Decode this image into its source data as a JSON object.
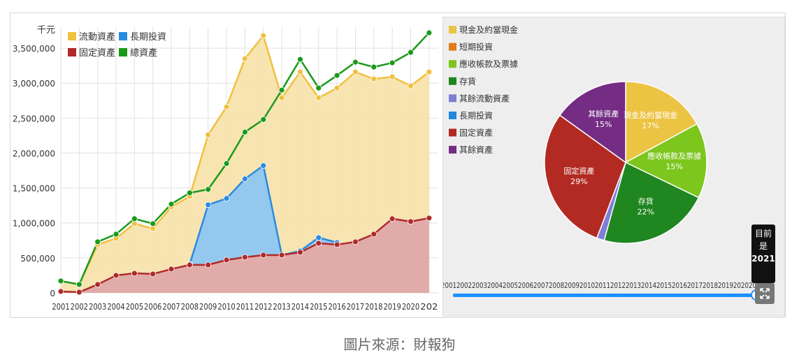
{
  "caption": "圖片來源：財報狗",
  "tooltip": {
    "line1": "目前",
    "line2": "是",
    "year": "2021"
  },
  "colors": {
    "current": "#f0c040",
    "longterm": "#2a8ae0",
    "fixed": "#b02a2a",
    "total": "#1a9a1a",
    "current_fill": "#f7e3ad",
    "longterm_fill": "#8fc6f2",
    "fixed_fill": "#dea8a8"
  },
  "chart_data": [
    {
      "type": "area",
      "unit_label": "千元",
      "categories": [
        "2001",
        "2002",
        "2003",
        "2004",
        "2005",
        "2006",
        "2007",
        "2008",
        "2009",
        "2010",
        "2011",
        "2012",
        "2013",
        "2014",
        "2015",
        "2016",
        "2017",
        "2018",
        "2019",
        "2020",
        "2021"
      ],
      "tick_labels": [
        "2001",
        "2002",
        "2003",
        "2004",
        "2005",
        "2006",
        "2007",
        "2008",
        "2009",
        "2010",
        "2011",
        "2012",
        "2013",
        "2014",
        "2015",
        "2016",
        "2017",
        "2018",
        "2019",
        "2020",
        "202"
      ],
      "ylim": [
        0,
        3800000
      ],
      "yticks": [
        0,
        500000,
        1000000,
        1500000,
        2000000,
        2500000,
        3000000,
        3500000
      ],
      "ytick_labels": [
        "0",
        "500,000",
        "1,000,000",
        "1,500,000",
        "2,000,000",
        "2,500,000",
        "3,000,000",
        "3,500,000"
      ],
      "grid": true,
      "legend": "top-left",
      "legend_entries": [
        "流動資產",
        "長期投資",
        "固定資產",
        "總資產"
      ],
      "series": [
        {
          "name": "流動資產",
          "values": [
            170000,
            120000,
            690000,
            780000,
            990000,
            920000,
            1230000,
            1380000,
            2260000,
            2660000,
            3350000,
            3680000,
            2790000,
            3160000,
            2790000,
            2930000,
            3160000,
            3060000,
            3090000,
            2960000,
            3160000
          ]
        },
        {
          "name": "長期投資",
          "values": [
            null,
            null,
            null,
            null,
            null,
            null,
            null,
            410000,
            1260000,
            1350000,
            1630000,
            1820000,
            540000,
            600000,
            790000,
            720000,
            null,
            null,
            null,
            null,
            null
          ]
        },
        {
          "name": "固定資產",
          "values": [
            20000,
            10000,
            120000,
            250000,
            280000,
            270000,
            340000,
            400000,
            400000,
            470000,
            510000,
            540000,
            540000,
            580000,
            710000,
            690000,
            730000,
            840000,
            1060000,
            1020000,
            1070000
          ]
        },
        {
          "name": "總資產",
          "values": [
            170000,
            120000,
            730000,
            840000,
            1060000,
            990000,
            1270000,
            1430000,
            1480000,
            1850000,
            2300000,
            2480000,
            2900000,
            3340000,
            2930000,
            3110000,
            3300000,
            3230000,
            3290000,
            3440000,
            3720000
          ]
        }
      ]
    },
    {
      "type": "pie",
      "legend": "top-left",
      "legend_entries": [
        "現金及約當現金",
        "短期投資",
        "應收帳款及票據",
        "存貨",
        "其餘流動資產",
        "長期投資",
        "固定資產",
        "其餘資產"
      ],
      "slices": [
        {
          "name": "現金及約當現金",
          "value": 17,
          "label": "17%",
          "color": "#ecc444"
        },
        {
          "name": "短期投資",
          "value": 0,
          "label": "",
          "color": "#e07b1a"
        },
        {
          "name": "應收帳款及票據",
          "value": 15,
          "label": "15%",
          "color": "#7cc61e"
        },
        {
          "name": "存貨",
          "value": 22,
          "label": "22%",
          "color": "#1f8620"
        },
        {
          "name": "其餘流動資產",
          "value": 1.5,
          "label": "",
          "color": "#7e7ed9"
        },
        {
          "name": "長期投資",
          "value": 0,
          "label": "",
          "color": "#1f88e0"
        },
        {
          "name": "固定資產",
          "value": 29,
          "label": "29%",
          "color": "#b22a22"
        },
        {
          "name": "其餘資產",
          "value": 15,
          "label": "15%",
          "color": "#742c84"
        }
      ],
      "timeline_labels": [
        "2001",
        "2002",
        "2003",
        "2004",
        "2005",
        "2006",
        "2007",
        "2008",
        "2009",
        "2010",
        "2011",
        "2012",
        "2013",
        "2014",
        "2015",
        "2016",
        "2017",
        "2018",
        "2019",
        "2020",
        "2021"
      ],
      "selected_year": "2021"
    }
  ]
}
